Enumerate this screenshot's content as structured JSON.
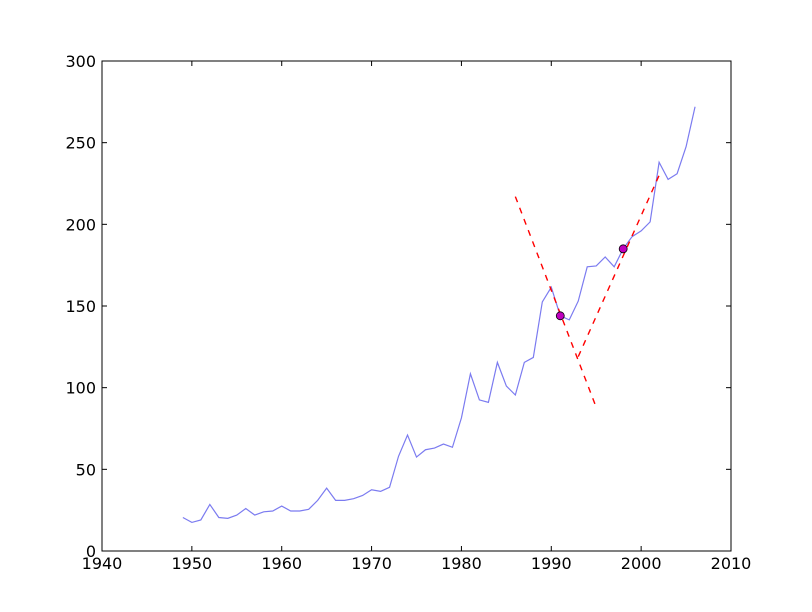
{
  "chart_data": {
    "type": "line",
    "title": "",
    "xlabel": "",
    "ylabel": "",
    "xlim": [
      1940,
      2010
    ],
    "ylim": [
      0,
      300
    ],
    "grid": false,
    "xticks": [
      1940,
      1950,
      1960,
      1970,
      1980,
      1990,
      2000,
      2010
    ],
    "yticks": [
      0,
      50,
      100,
      150,
      200,
      250,
      300
    ],
    "series": [
      {
        "color": "#7b7bf0",
        "points": [
          [
            1949,
            20.5
          ],
          [
            1950,
            17.5
          ],
          [
            1951,
            19
          ],
          [
            1952,
            28.5
          ],
          [
            1953,
            20.5
          ],
          [
            1954,
            20
          ],
          [
            1955,
            22
          ],
          [
            1956,
            26
          ],
          [
            1957,
            22
          ],
          [
            1958,
            24
          ],
          [
            1959,
            24.5
          ],
          [
            1960,
            27.5
          ],
          [
            1961,
            24.5
          ],
          [
            1962,
            24.5
          ],
          [
            1963,
            25.5
          ],
          [
            1964,
            31
          ],
          [
            1965,
            38.5
          ],
          [
            1966,
            31
          ],
          [
            1967,
            31
          ],
          [
            1968,
            32
          ],
          [
            1969,
            34
          ],
          [
            1970,
            37.5
          ],
          [
            1971,
            36.5
          ],
          [
            1972,
            39
          ],
          [
            1973,
            58
          ],
          [
            1974,
            71
          ],
          [
            1975,
            57.5
          ],
          [
            1976,
            62
          ],
          [
            1977,
            63
          ],
          [
            1978,
            65.5
          ],
          [
            1979,
            63.5
          ],
          [
            1980,
            81.5
          ],
          [
            1981,
            108.5
          ],
          [
            1982,
            92.5
          ],
          [
            1983,
            91
          ],
          [
            1984,
            115.5
          ],
          [
            1985,
            101
          ],
          [
            1986,
            95.5
          ],
          [
            1987,
            115.5
          ],
          [
            1988,
            118.5
          ],
          [
            1989,
            152.5
          ],
          [
            1990,
            161.5
          ],
          [
            1991,
            144
          ],
          [
            1992,
            141.5
          ],
          [
            1993,
            153
          ],
          [
            1994,
            174
          ],
          [
            1995,
            174.5
          ],
          [
            1996,
            180
          ],
          [
            1997,
            174
          ],
          [
            1998,
            185
          ],
          [
            1999,
            192.5
          ],
          [
            2000,
            196
          ],
          [
            2001,
            201.5
          ],
          [
            2002,
            238
          ],
          [
            2003,
            227.5
          ],
          [
            2004,
            231
          ],
          [
            2005,
            247.5
          ],
          [
            2006,
            272
          ]
        ]
      }
    ],
    "highlight_points": [
      {
        "x": 1991,
        "y": 144,
        "color": "#bf00bf"
      },
      {
        "x": 1998,
        "y": 185,
        "color": "#bf00bf"
      }
    ],
    "dashed_lines": [
      {
        "x1": 1986,
        "y1": 217,
        "x2": 1995,
        "y2": 88,
        "color": "#ff0000"
      },
      {
        "x1": 1993,
        "y1": 119,
        "x2": 2002,
        "y2": 230,
        "color": "#ff0000"
      }
    ]
  }
}
